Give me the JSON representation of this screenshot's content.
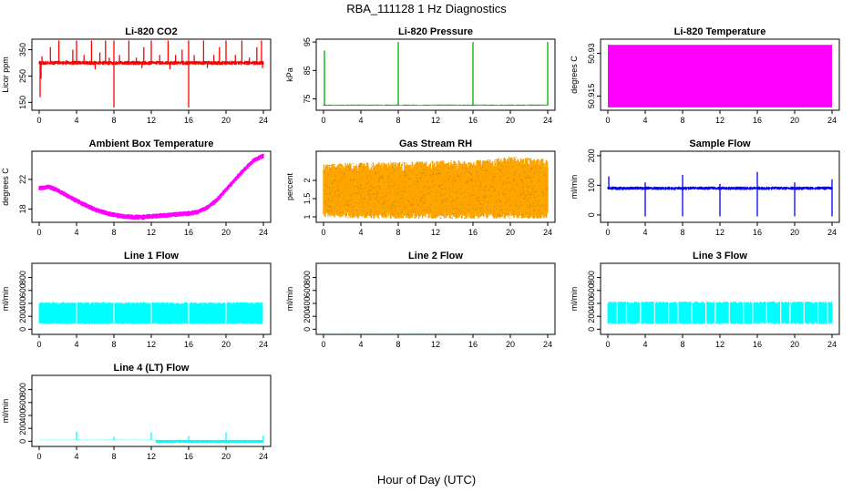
{
  "figure": {
    "title": "RBA_111128  1 Hz Diagnostics",
    "xlabel": "Hour of Day (UTC)"
  },
  "chart_data": [
    {
      "id": "co2",
      "type": "line",
      "title": "Li-820 CO2",
      "ylabel": "Licor ppm",
      "color": "#ff0000",
      "x_ticks": [
        0,
        4,
        8,
        12,
        16,
        20,
        24
      ],
      "xlim": [
        0,
        24
      ],
      "y_ticks": [
        150,
        250,
        350
      ],
      "ylim": [
        120,
        390
      ],
      "baseline": 300,
      "noise": 8,
      "spikes_up": [
        [
          0.3,
          325
        ],
        [
          1.2,
          360
        ],
        [
          2.1,
          385
        ],
        [
          2.9,
          310
        ],
        [
          3.6,
          350
        ],
        [
          4.0,
          385
        ],
        [
          4.8,
          330
        ],
        [
          5.6,
          385
        ],
        [
          6.5,
          340
        ],
        [
          7.1,
          385
        ],
        [
          7.5,
          320
        ],
        [
          8.0,
          385
        ],
        [
          8.6,
          330
        ],
        [
          9.6,
          385
        ],
        [
          10.4,
          320
        ],
        [
          11.2,
          360
        ],
        [
          12.0,
          385
        ],
        [
          12.9,
          330
        ],
        [
          13.8,
          385
        ],
        [
          14.6,
          330
        ],
        [
          15.3,
          350
        ],
        [
          16.0,
          385
        ],
        [
          16.6,
          330
        ],
        [
          17.6,
          385
        ],
        [
          18.7,
          330
        ],
        [
          19.3,
          360
        ],
        [
          20.0,
          385
        ],
        [
          21.0,
          330
        ],
        [
          21.7,
          385
        ],
        [
          22.5,
          320
        ],
        [
          23.3,
          360
        ],
        [
          23.8,
          385
        ]
      ],
      "spikes_down": [
        [
          0.1,
          170
        ],
        [
          8.0,
          130
        ],
        [
          16.0,
          130
        ],
        [
          0.2,
          240
        ],
        [
          6.0,
          275
        ],
        [
          11.0,
          280
        ],
        [
          14.0,
          275
        ],
        [
          18.0,
          280
        ],
        [
          23.9,
          280
        ]
      ]
    },
    {
      "id": "pressure",
      "type": "line",
      "title": "Li-820 Pressure",
      "ylabel": "kPa",
      "color": "#00aa00",
      "x_ticks": [
        0,
        4,
        8,
        12,
        16,
        20,
        24
      ],
      "xlim": [
        0,
        24
      ],
      "y_ticks": [
        75,
        85,
        95
      ],
      "ylim": [
        71,
        96
      ],
      "baseline": 72.8,
      "noise": 0.2,
      "spikes_up": [
        [
          0.1,
          92
        ],
        [
          8.0,
          95
        ],
        [
          16.0,
          95
        ],
        [
          24.0,
          95
        ]
      ],
      "spikes_down": []
    },
    {
      "id": "licor_temp",
      "type": "area",
      "title": "Li-820 Temperature",
      "ylabel": "degrees C",
      "color": "#ff00ff",
      "x_ticks": [
        0,
        4,
        8,
        12,
        16,
        20,
        24
      ],
      "xlim": [
        0,
        24
      ],
      "y_ticks": [
        50.915,
        50.93
      ],
      "ylim": [
        50.91,
        50.935
      ],
      "band": [
        50.911,
        50.933
      ]
    },
    {
      "id": "box_temp",
      "type": "line",
      "title": "Ambient Box Temperature",
      "ylabel": "degrees C",
      "color": "#ff00ff",
      "x_ticks": [
        0,
        4,
        8,
        12,
        16,
        20,
        24
      ],
      "xlim": [
        0,
        24
      ],
      "y_ticks": [
        18,
        22
      ],
      "ylim": [
        16.2,
        25.8
      ],
      "curve": [
        [
          0,
          20.8
        ],
        [
          1,
          21.0
        ],
        [
          2,
          20.5
        ],
        [
          3,
          19.8
        ],
        [
          4,
          19.1
        ],
        [
          5,
          18.5
        ],
        [
          6,
          17.9
        ],
        [
          7,
          17.5
        ],
        [
          8,
          17.2
        ],
        [
          9,
          17.0
        ],
        [
          10,
          16.9
        ],
        [
          11,
          16.9
        ],
        [
          12,
          17.0
        ],
        [
          13,
          17.1
        ],
        [
          14,
          17.2
        ],
        [
          15,
          17.3
        ],
        [
          16,
          17.4
        ],
        [
          17,
          17.6
        ],
        [
          18,
          18.2
        ],
        [
          19,
          19.2
        ],
        [
          20,
          20.6
        ],
        [
          21,
          22.0
        ],
        [
          22,
          23.4
        ],
        [
          23,
          24.6
        ],
        [
          24,
          25.2
        ]
      ],
      "noise": 0.35
    },
    {
      "id": "rh",
      "type": "area",
      "title": "Gas Stream RH",
      "ylabel": "percent",
      "color": "#ffa500",
      "x_ticks": [
        0,
        4,
        8,
        12,
        16,
        20,
        24
      ],
      "xlim": [
        0,
        24
      ],
      "y_ticks": [
        1.0,
        1.5,
        2.0
      ],
      "ylim": [
        0.85,
        2.8
      ],
      "band_curve": [
        [
          0,
          1.0,
          2.45
        ],
        [
          4,
          0.95,
          2.5
        ],
        [
          8,
          0.95,
          2.5
        ],
        [
          12,
          0.95,
          2.55
        ],
        [
          16,
          0.95,
          2.55
        ],
        [
          20,
          0.95,
          2.65
        ],
        [
          24,
          0.95,
          2.6
        ]
      ],
      "noise": 0.08
    },
    {
      "id": "sample_flow",
      "type": "line",
      "title": "Sample Flow",
      "ylabel": "ml/min",
      "color": "#0000ff",
      "x_ticks": [
        0,
        4,
        8,
        12,
        16,
        20,
        24
      ],
      "xlim": [
        0,
        24
      ],
      "y_ticks": [
        0,
        100,
        200
      ],
      "ylim": [
        -25,
        215
      ],
      "baseline": 90,
      "noise": 6,
      "spikes_up": [
        [
          0.1,
          130
        ],
        [
          4.0,
          110
        ],
        [
          8.0,
          135
        ],
        [
          12.0,
          105
        ],
        [
          16.0,
          145
        ],
        [
          20.0,
          110
        ],
        [
          24.0,
          120
        ]
      ],
      "spikes_down": [
        [
          4.0,
          -5
        ],
        [
          8.0,
          -5
        ],
        [
          12.0,
          -5
        ],
        [
          16.0,
          -5
        ],
        [
          20.0,
          -5
        ],
        [
          24.0,
          -5
        ]
      ]
    },
    {
      "id": "line1",
      "type": "area",
      "title": "Line 1 Flow",
      "ylabel": "ml/min",
      "color": "#00ffff",
      "x_ticks": [
        0,
        4,
        8,
        12,
        16,
        20,
        24
      ],
      "xlim": [
        0,
        24
      ],
      "y_ticks": [
        0,
        200,
        400,
        600,
        800
      ],
      "ylim": [
        -80,
        1020
      ],
      "band": [
        80,
        420
      ],
      "notches": [
        4,
        8,
        12,
        16,
        20,
        24
      ]
    },
    {
      "id": "line2",
      "type": "line",
      "title": "Line 2 Flow",
      "ylabel": "ml/min",
      "color": "#00ffff",
      "x_ticks": [
        0,
        4,
        8,
        12,
        16,
        20,
        24
      ],
      "xlim": [
        0,
        24
      ],
      "y_ticks": [
        0,
        200,
        400,
        600,
        800
      ],
      "ylim": [
        -80,
        1020
      ],
      "baseline": -45,
      "noise": 1
    },
    {
      "id": "line3",
      "type": "area",
      "title": "Line 3 Flow",
      "ylabel": "ml/min",
      "color": "#00ffff",
      "x_ticks": [
        0,
        4,
        8,
        12,
        16,
        20,
        24
      ],
      "xlim": [
        0,
        24
      ],
      "y_ticks": [
        0,
        200,
        400,
        600,
        800
      ],
      "ylim": [
        -80,
        1020
      ],
      "band": [
        80,
        430
      ],
      "notches": [
        1,
        2,
        3.5,
        5,
        6.5,
        7.5,
        9,
        10.5,
        11.5,
        13,
        14.5,
        15.5,
        17,
        18.5,
        19.5,
        21,
        22.5,
        23.5
      ]
    },
    {
      "id": "line4",
      "type": "line",
      "title": "Line 4 (LT) Flow",
      "ylabel": "ml/min",
      "color": "#00ffff",
      "x_ticks": [
        0,
        4,
        8,
        12,
        16,
        20,
        24
      ],
      "xlim": [
        0,
        24
      ],
      "y_ticks": [
        0,
        200,
        400,
        600,
        800
      ],
      "ylim": [
        -80,
        1020
      ],
      "baseline": 20,
      "noise": 3,
      "spikes_up": [
        [
          4.0,
          150
        ],
        [
          8.0,
          70
        ],
        [
          12.0,
          140
        ],
        [
          16.0,
          80
        ],
        [
          20.0,
          140
        ],
        [
          24.0,
          90
        ]
      ],
      "dip_region": [
        12.5,
        24,
        -30,
        20
      ]
    }
  ]
}
